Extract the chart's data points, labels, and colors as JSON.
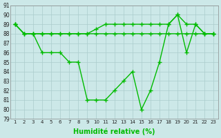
{
  "xlabel": "Humidité relative (%)",
  "x": [
    1,
    2,
    3,
    4,
    5,
    6,
    7,
    8,
    9,
    10,
    11,
    12,
    13,
    14,
    15,
    16,
    17,
    18,
    19,
    20,
    21,
    22,
    23
  ],
  "line_flat": [
    89,
    88,
    88,
    88,
    88,
    88,
    88,
    88,
    88,
    88,
    88,
    88,
    88,
    88,
    88,
    88,
    88,
    88,
    88,
    88,
    88,
    88,
    88
  ],
  "line_upper": [
    89,
    88,
    88,
    88,
    88,
    88,
    88,
    88,
    88,
    88.5,
    89,
    89,
    89,
    89,
    89,
    89,
    89,
    89,
    90,
    89,
    89,
    88,
    88
  ],
  "line_curve": [
    89,
    88,
    88,
    86,
    86,
    86,
    85,
    85,
    81,
    81,
    81,
    82,
    83,
    84,
    80,
    82,
    85,
    89,
    90,
    86,
    89,
    88,
    88
  ],
  "ylim_min": 79,
  "ylim_max": 91,
  "yticks": [
    79,
    80,
    81,
    82,
    83,
    84,
    85,
    86,
    87,
    88,
    89,
    90,
    91
  ],
  "line_color": "#00bb00",
  "bg_color": "#cce8e8",
  "grid_color": "#aacccc"
}
